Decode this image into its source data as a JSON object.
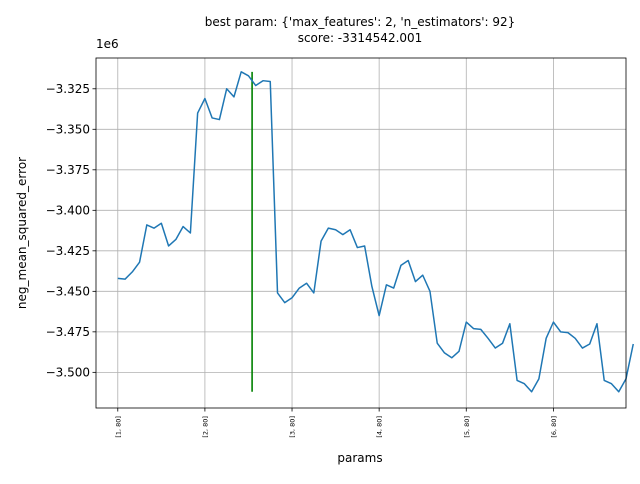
{
  "chart_data": {
    "type": "line",
    "title": "best param: {'max_features': 2, 'n_estimators': 92}",
    "subtitle": "score: -3314542.001",
    "xlabel": "params",
    "ylabel": "neg_mean_squared_error",
    "y_offset_label": "1e6",
    "y_scale": 1000000,
    "grid": true,
    "xlim": [
      -3,
      70
    ],
    "ylim": [
      -3522000,
      -3306000
    ],
    "x_ticks": [
      {
        "x": 0,
        "label": "[1, 80]"
      },
      {
        "x": 12,
        "label": "[2, 80]"
      },
      {
        "x": 24,
        "label": "[3, 80]"
      },
      {
        "x": 36,
        "label": "[4, 80]"
      },
      {
        "x": 48,
        "label": "[5, 80]"
      },
      {
        "x": 60,
        "label": "[6, 80]"
      }
    ],
    "y_ticks": [
      {
        "y": -3325000,
        "label": "−3.325"
      },
      {
        "y": -3350000,
        "label": "−3.350"
      },
      {
        "y": -3375000,
        "label": "−3.375"
      },
      {
        "y": -3400000,
        "label": "−3.400"
      },
      {
        "y": -3425000,
        "label": "−3.425"
      },
      {
        "y": -3450000,
        "label": "−3.450"
      },
      {
        "y": -3475000,
        "label": "−3.475"
      },
      {
        "y": -3500000,
        "label": "−3.500"
      }
    ],
    "best_marker": {
      "x": 18.5,
      "y_top": -3314542,
      "y_bottom": -3512000,
      "color": "#008000"
    },
    "series": [
      {
        "color": "#1f77b4",
        "x": [
          0,
          1,
          2,
          3,
          4,
          5,
          6,
          7,
          8,
          9,
          10,
          11,
          12,
          13,
          14,
          15,
          16,
          17,
          18,
          19,
          20,
          21,
          22,
          23,
          24,
          25,
          26,
          27,
          28,
          29,
          30,
          31,
          32,
          33,
          34,
          35,
          36,
          37,
          38,
          39,
          40,
          41,
          42,
          43,
          44,
          45,
          46,
          47,
          48,
          49,
          50,
          51,
          52,
          53,
          54,
          55,
          56,
          57,
          58,
          59,
          60,
          61,
          62,
          63,
          64,
          65,
          66,
          67,
          68,
          69,
          70,
          71
        ],
        "y": [
          -3442000,
          -3442500,
          -3438000,
          -3432000,
          -3409000,
          -3411000,
          -3408000,
          -3422000,
          -3418000,
          -3410000,
          -3414000,
          -3340000,
          -3331000,
          -3343000,
          -3344000,
          -3325000,
          -3330000,
          -3314542,
          -3317000,
          -3323000,
          -3320000,
          -3320500,
          -3451000,
          -3457000,
          -3454000,
          -3448000,
          -3445000,
          -3451000,
          -3419000,
          -3411000,
          -3412000,
          -3415000,
          -3412000,
          -3423000,
          -3422000,
          -3447000,
          -3465000,
          -3446000,
          -3448000,
          -3434000,
          -3431000,
          -3444000,
          -3440000,
          -3450000,
          -3482000,
          -3488000,
          -3491000,
          -3487000,
          -3469000,
          -3473000,
          -3473500,
          -3479000,
          -3485000,
          -3482000,
          -3470000,
          -3505000,
          -3507000,
          -3512000,
          -3504000,
          -3479000,
          -3469000,
          -3475000,
          -3475500,
          -3479000,
          -3485000,
          -3482500,
          -3470000,
          -3505000,
          -3507000,
          -3512000,
          -3504000,
          -3482500
        ]
      }
    ]
  }
}
